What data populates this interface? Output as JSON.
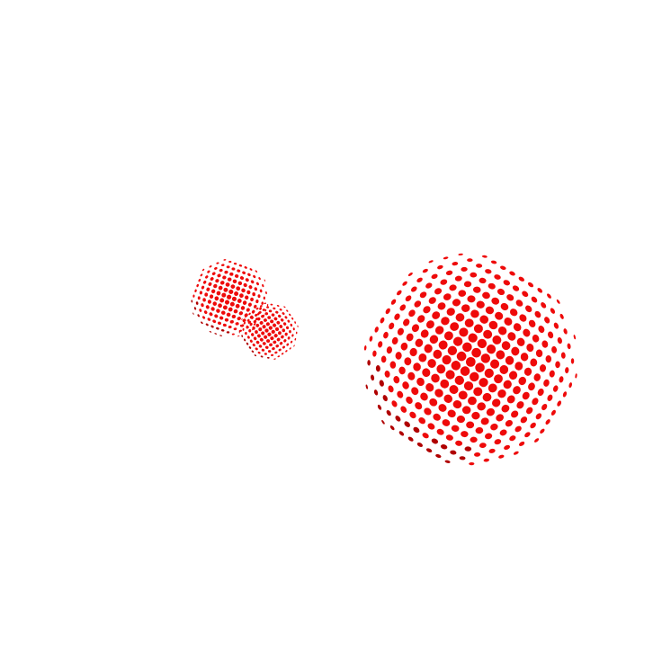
{
  "background_color": "#ffffff",
  "sphere_color": "#ee0a0a",
  "sphere_shadow_color": "#b00000",
  "spheres": [
    {
      "name": "small-back-sphere"
    },
    {
      "name": "small-front-sphere"
    },
    {
      "name": "large-sphere"
    }
  ]
}
